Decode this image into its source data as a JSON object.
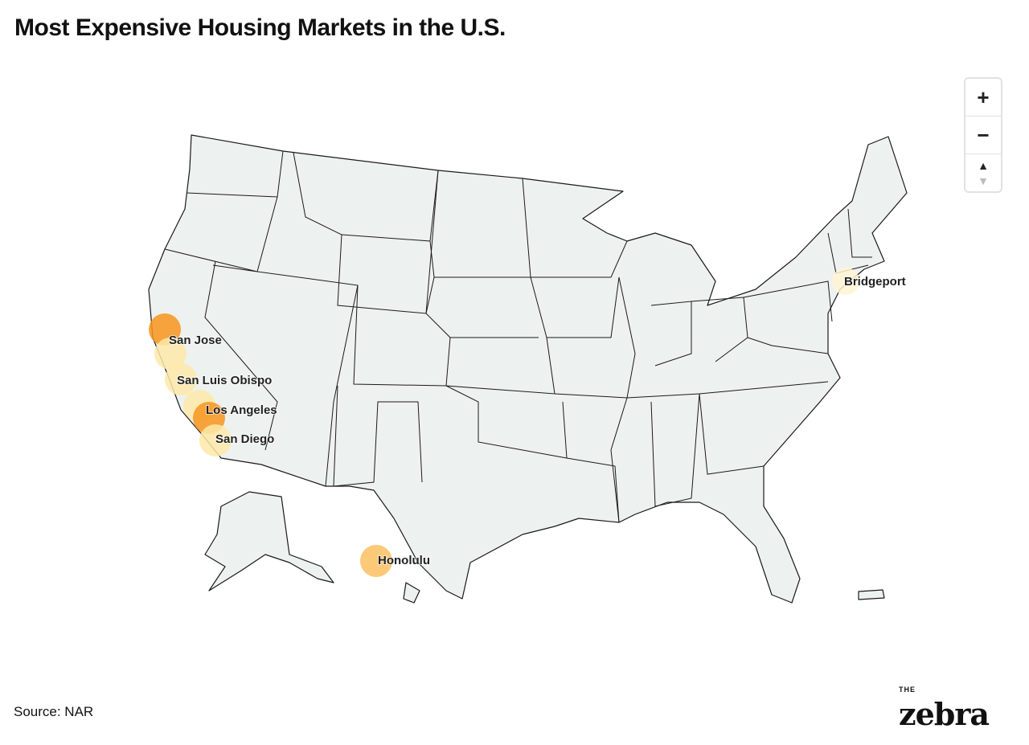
{
  "title": "Most Expensive Housing Markets in the U.S.",
  "source": "Source: NAR",
  "logo": {
    "small": "THE",
    "main": "zebra"
  },
  "zoom_controls": {
    "zoom_in": "+",
    "zoom_out": "−",
    "reset_up": "▲",
    "reset_down": "▼"
  },
  "colors": {
    "land": "#edf2f0",
    "border": "#1a1a1a",
    "high": "#f7941d",
    "mid": "#fbbf62",
    "low": "#fde9a8",
    "lowest": "#fff4d4"
  },
  "markets": [
    {
      "name": "San Jose",
      "level": "high"
    },
    {
      "name": "",
      "level": "low"
    },
    {
      "name": "San Luis Obispo",
      "level": "low"
    },
    {
      "name": "Los Angeles",
      "level": "low"
    },
    {
      "name": "",
      "level": "high"
    },
    {
      "name": "San Diego",
      "level": "low"
    },
    {
      "name": "Honolulu",
      "level": "mid"
    },
    {
      "name": "Bridgeport",
      "level": "lowest"
    }
  ]
}
